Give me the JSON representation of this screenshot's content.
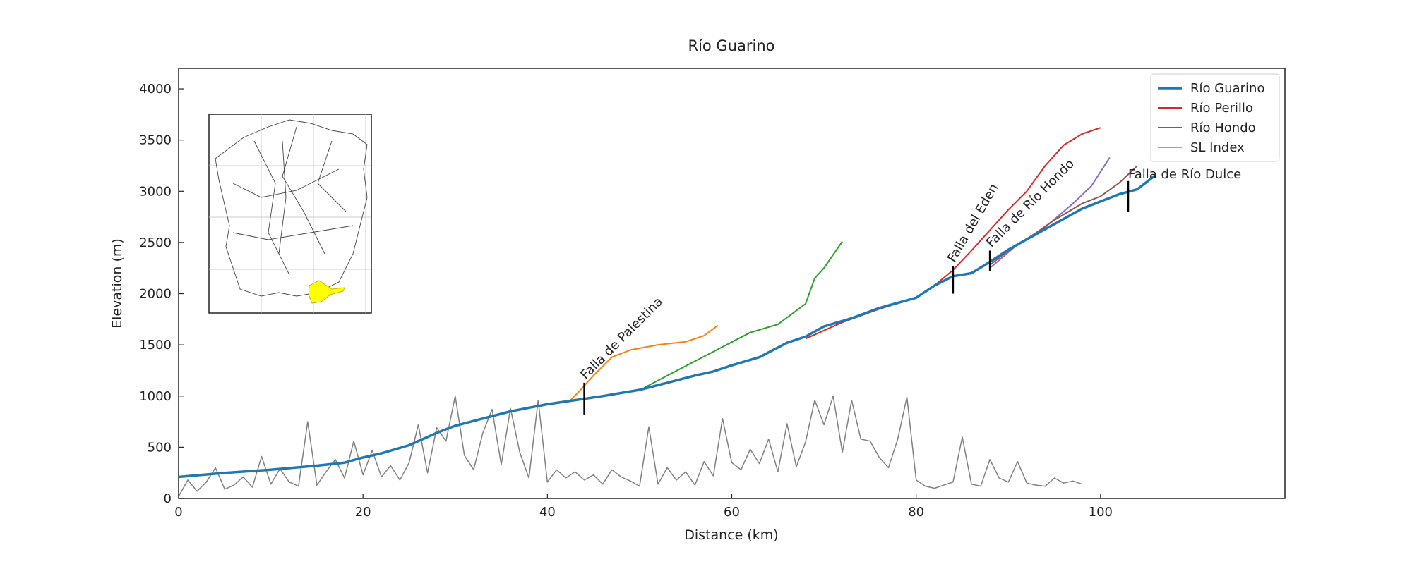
{
  "chart_data": {
    "type": "line",
    "title": "Río Guarino",
    "x_label": "Distance (km)",
    "y_label": "Elevation (m)",
    "xlim": [
      0,
      120
    ],
    "ylim": [
      0,
      4200
    ],
    "xticks": [
      0,
      20,
      40,
      60,
      80,
      100
    ],
    "yticks": [
      0,
      500,
      1000,
      1500,
      2000,
      2500,
      3000,
      3500,
      4000
    ],
    "grid": false,
    "legend": "upper right",
    "series": [
      {
        "name": "Río Guarino",
        "color": "#1f77b4",
        "width": 3.5,
        "x": [
          0,
          5,
          10,
          15,
          18,
          20,
          22,
          25,
          28,
          30,
          33,
          36,
          40,
          43,
          46,
          50,
          53,
          56,
          58,
          60,
          63,
          66,
          68,
          70,
          73,
          76,
          80,
          82,
          84,
          86,
          88,
          90,
          92,
          95,
          98,
          100,
          102,
          104,
          106
        ],
        "values": [
          210,
          250,
          280,
          320,
          350,
          400,
          440,
          520,
          640,
          710,
          780,
          850,
          920,
          960,
          1000,
          1060,
          1130,
          1200,
          1240,
          1300,
          1380,
          1520,
          1580,
          1680,
          1760,
          1860,
          1960,
          2080,
          2170,
          2200,
          2310,
          2430,
          2530,
          2680,
          2830,
          2900,
          2970,
          3020,
          3160
        ]
      },
      {
        "name": "Río Perillo",
        "color": "#d62728",
        "width": 2,
        "x": [
          68,
          72,
          76,
          80,
          82,
          84,
          86,
          88,
          90,
          92,
          94,
          96,
          98,
          100
        ],
        "values": [
          1560,
          1720,
          1850,
          1960,
          2080,
          2230,
          2420,
          2620,
          2820,
          3000,
          3250,
          3450,
          3560,
          3620
        ]
      },
      {
        "name": "Río Hondo",
        "color": "#8c564b",
        "width": 2,
        "x": [
          88,
          90,
          92,
          95,
          98,
          100,
          102,
          104
        ],
        "values": [
          2280,
          2420,
          2530,
          2720,
          2880,
          2950,
          3080,
          3250
        ]
      },
      {
        "name": "SL Index",
        "color": "#808080",
        "width": 1.5,
        "x": [
          0,
          1,
          2,
          3,
          4,
          5,
          6,
          7,
          8,
          9,
          10,
          11,
          12,
          13,
          14,
          15,
          16,
          17,
          18,
          19,
          20,
          21,
          22,
          23,
          24,
          25,
          26,
          27,
          28,
          29,
          30,
          31,
          32,
          33,
          34,
          35,
          36,
          37,
          38,
          39,
          40,
          41,
          42,
          43,
          44,
          45,
          46,
          47,
          48,
          49,
          50,
          51,
          52,
          53,
          54,
          55,
          56,
          57,
          58,
          59,
          60,
          61,
          62,
          63,
          64,
          65,
          66,
          67,
          68,
          69,
          70,
          71,
          72,
          73,
          74,
          75,
          76,
          77,
          78,
          79,
          80,
          81,
          82,
          83,
          84,
          85,
          86,
          87,
          88,
          89,
          90,
          91,
          92,
          93,
          94,
          95,
          96,
          97,
          98
        ],
        "values": [
          20,
          180,
          70,
          160,
          300,
          90,
          130,
          210,
          110,
          410,
          140,
          290,
          160,
          120,
          750,
          130,
          260,
          380,
          200,
          560,
          230,
          470,
          210,
          320,
          180,
          350,
          720,
          250,
          690,
          560,
          1000,
          420,
          280,
          640,
          870,
          330,
          880,
          450,
          200,
          960,
          160,
          280,
          200,
          260,
          180,
          230,
          140,
          280,
          210,
          170,
          120,
          700,
          140,
          300,
          180,
          260,
          130,
          360,
          220,
          780,
          350,
          280,
          480,
          340,
          580,
          260,
          730,
          310,
          550,
          960,
          720,
          1000,
          450,
          960,
          580,
          560,
          400,
          300,
          580,
          990,
          180,
          120,
          100,
          130,
          160,
          600,
          140,
          120,
          380,
          200,
          160,
          360,
          150,
          130,
          120,
          200,
          150,
          170,
          140
        ]
      },
      {
        "color": "#9467bd",
        "width": 2,
        "x": [
          88,
          91,
          94,
          97,
          99,
          101
        ],
        "values": [
          2250,
          2480,
          2650,
          2880,
          3050,
          3330
        ]
      },
      {
        "color": "#ff7f0e",
        "width": 2,
        "x": [
          42.5,
          43.5,
          45,
          47,
          49,
          52,
          55,
          57,
          58.5
        ],
        "values": [
          960,
          1050,
          1200,
          1380,
          1450,
          1500,
          1530,
          1590,
          1690
        ]
      },
      {
        "color": "#2ca02c",
        "width": 2,
        "x": [
          50.5,
          53,
          56,
          59,
          62,
          65,
          68,
          69,
          70,
          71,
          72
        ],
        "values": [
          1080,
          1200,
          1340,
          1480,
          1620,
          1700,
          1900,
          2150,
          2250,
          2380,
          2510
        ]
      }
    ],
    "annotations": [
      {
        "text": "Falla de Palestina",
        "x": 44,
        "y": [
          820,
          1130
        ],
        "rotation": 45
      },
      {
        "text": "Falla del Eden",
        "x": 84,
        "y": [
          2000,
          2270
        ],
        "rotation": 60
      },
      {
        "text": "Falla de Río Hondo",
        "x": 88,
        "y": [
          2220,
          2420
        ],
        "rotation": 45
      },
      {
        "text": "Falla de Río Dulce",
        "x": 103,
        "y": [
          2800,
          3100
        ],
        "rotation": 0
      }
    ]
  }
}
